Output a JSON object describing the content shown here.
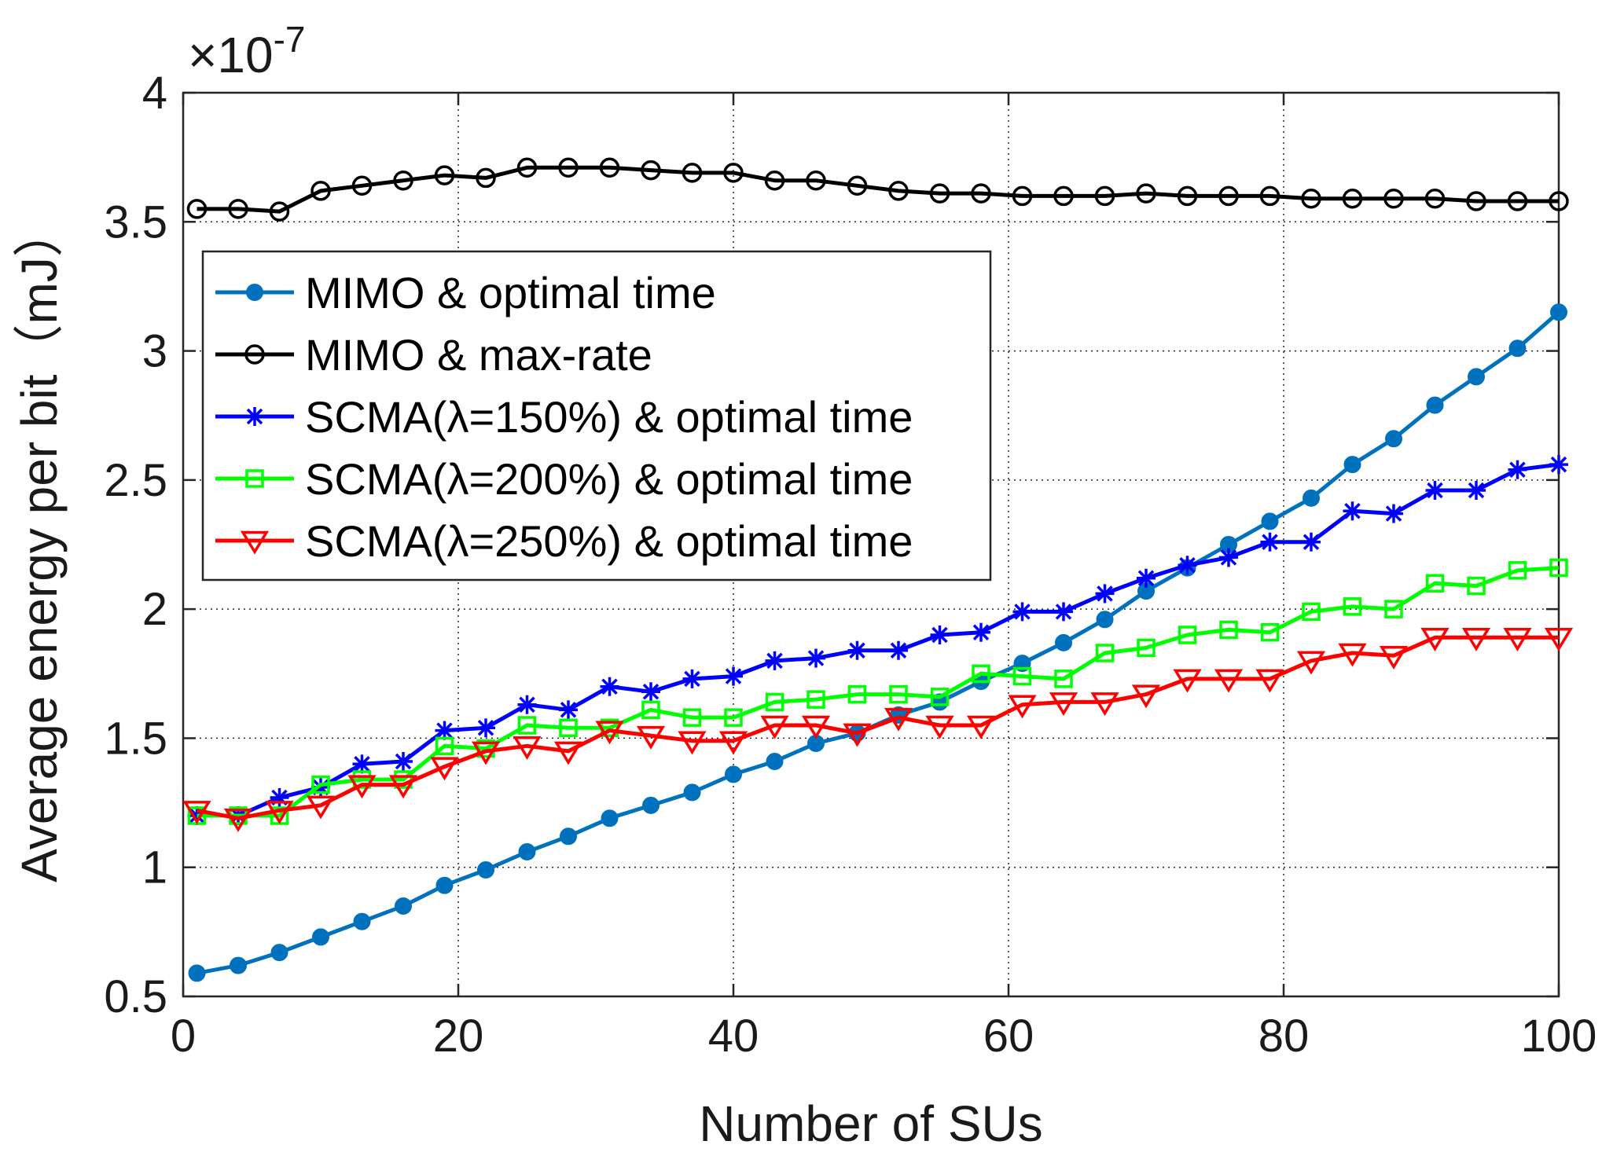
{
  "chart_data": {
    "type": "line",
    "xlabel": "Number of SUs",
    "ylabel": "Average energy per bit（mJ）",
    "exponent_base": "×10",
    "exponent_power": "-7",
    "xlim": [
      0,
      100
    ],
    "ylim": [
      0.5,
      4
    ],
    "xticks": [
      0,
      20,
      40,
      60,
      80,
      100
    ],
    "xtick_labels": [
      "0",
      "20",
      "40",
      "60",
      "80",
      "100"
    ],
    "yticks": [
      0.5,
      1,
      1.5,
      2,
      2.5,
      3,
      3.5,
      4
    ],
    "ytick_labels": [
      "0.5",
      "1",
      "1.5",
      "2",
      "2.5",
      "3",
      "3.5",
      "4"
    ],
    "grid": true,
    "legend_position": "upper-left",
    "x": [
      1,
      4,
      7,
      10,
      13,
      16,
      19,
      22,
      25,
      28,
      31,
      34,
      37,
      40,
      43,
      46,
      49,
      52,
      55,
      58,
      61,
      64,
      67,
      70,
      73,
      76,
      79,
      82,
      85,
      88,
      91,
      94,
      97,
      100
    ],
    "series": [
      {
        "name": "MIMO & optimal time",
        "color": "#0072BD",
        "marker": "filled-circle",
        "values": [
          0.59,
          0.62,
          0.67,
          0.73,
          0.79,
          0.85,
          0.93,
          0.99,
          1.06,
          1.12,
          1.19,
          1.24,
          1.29,
          1.36,
          1.41,
          1.48,
          1.52,
          1.59,
          1.64,
          1.72,
          1.79,
          1.87,
          1.96,
          2.07,
          2.16,
          2.25,
          2.34,
          2.43,
          2.56,
          2.66,
          2.79,
          2.9,
          3.01,
          3.15
        ]
      },
      {
        "name": "MIMO & max-rate",
        "color": "#000000",
        "marker": "open-circle",
        "values": [
          3.55,
          3.55,
          3.54,
          3.62,
          3.64,
          3.66,
          3.68,
          3.67,
          3.71,
          3.71,
          3.71,
          3.7,
          3.69,
          3.69,
          3.66,
          3.66,
          3.64,
          3.62,
          3.61,
          3.61,
          3.6,
          3.6,
          3.6,
          3.61,
          3.6,
          3.6,
          3.6,
          3.59,
          3.59,
          3.59,
          3.59,
          3.58,
          3.58,
          3.58
        ]
      },
      {
        "name": "SCMA(λ=150%) & optimal time",
        "color": "#0000FF",
        "marker": "asterisk",
        "values": [
          1.2,
          1.2,
          1.27,
          1.31,
          1.4,
          1.41,
          1.53,
          1.54,
          1.63,
          1.61,
          1.7,
          1.68,
          1.73,
          1.74,
          1.8,
          1.81,
          1.84,
          1.84,
          1.9,
          1.91,
          1.99,
          1.99,
          2.06,
          2.12,
          2.17,
          2.2,
          2.26,
          2.26,
          2.38,
          2.37,
          2.46,
          2.46,
          2.54,
          2.56
        ]
      },
      {
        "name": "SCMA(λ=200%) & optimal time",
        "color": "#00FF00",
        "marker": "open-square",
        "values": [
          1.2,
          1.2,
          1.2,
          1.32,
          1.34,
          1.34,
          1.47,
          1.46,
          1.55,
          1.54,
          1.54,
          1.61,
          1.58,
          1.58,
          1.64,
          1.65,
          1.67,
          1.67,
          1.66,
          1.75,
          1.74,
          1.73,
          1.83,
          1.85,
          1.9,
          1.92,
          1.91,
          1.99,
          2.01,
          2.0,
          2.1,
          2.09,
          2.15,
          2.16
        ]
      },
      {
        "name": "SCMA(λ=250%) & optimal time",
        "color": "#FF0000",
        "marker": "down-triangle",
        "values": [
          1.22,
          1.19,
          1.22,
          1.24,
          1.32,
          1.32,
          1.39,
          1.45,
          1.47,
          1.45,
          1.53,
          1.51,
          1.49,
          1.49,
          1.55,
          1.55,
          1.52,
          1.58,
          1.55,
          1.55,
          1.63,
          1.64,
          1.64,
          1.67,
          1.73,
          1.73,
          1.73,
          1.8,
          1.83,
          1.82,
          1.89,
          1.89,
          1.89,
          1.89
        ]
      }
    ]
  }
}
